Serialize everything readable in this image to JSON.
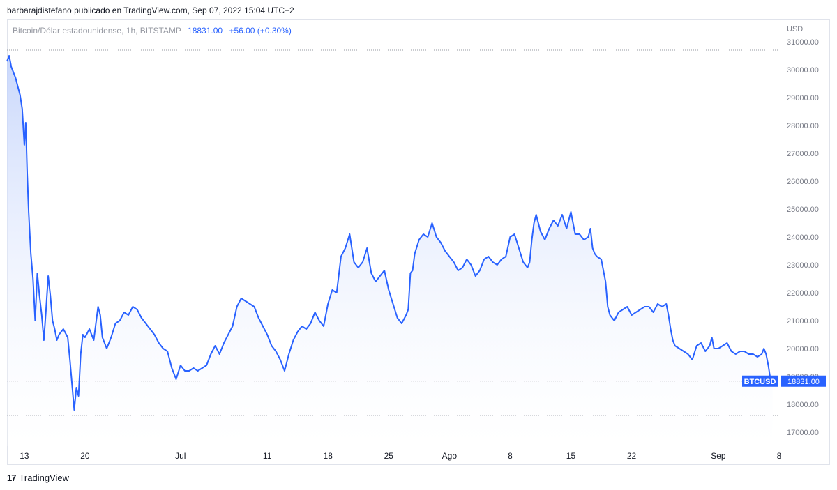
{
  "header": {
    "caption": "barbarajdistefano publicado en TradingView.com, Sep 07, 2022 15:04 UTC+2"
  },
  "legend": {
    "symbol": "Bitcoin/Dólar estadounidense, 1h, BITSTAMP",
    "price": "18831.00",
    "change": "+56.00 (+0.30%)"
  },
  "footer": {
    "brand": "TradingView",
    "logo_icon": "tradingview-logo-icon"
  },
  "colors": {
    "line": "#2962ff",
    "fill_top": "#bfd0fb",
    "fill_bottom": "#ffffff",
    "badge": "#2962ff",
    "axis_text": "#787b86"
  },
  "chart_data": {
    "type": "area",
    "currency_label": "USD",
    "y_ticks": [
      17000,
      18000,
      19000,
      20000,
      21000,
      22000,
      23000,
      24000,
      25000,
      26000,
      27000,
      28000,
      29000,
      30000,
      31000
    ],
    "y_tick_labels": [
      "17000.00",
      "18000.00",
      "19000.00",
      "20000.00",
      "21000.00",
      "22000.00",
      "23000.00",
      "24000.00",
      "25000.00",
      "26000.00",
      "27000.00",
      "28000.00",
      "29000.00",
      "30000.00",
      "31000.00"
    ],
    "ylim": [
      16500,
      31800
    ],
    "x_range": [
      "2022-06-11",
      "2022-09-08"
    ],
    "x_ticks": [
      {
        "date": "2022-06-13",
        "label": "13"
      },
      {
        "date": "2022-06-20",
        "label": "20"
      },
      {
        "date": "2022-07-01",
        "label": "Jul"
      },
      {
        "date": "2022-07-11",
        "label": "11"
      },
      {
        "date": "2022-07-18",
        "label": "18"
      },
      {
        "date": "2022-07-25",
        "label": "25"
      },
      {
        "date": "2022-08-01",
        "label": "Ago"
      },
      {
        "date": "2022-08-08",
        "label": "8"
      },
      {
        "date": "2022-08-15",
        "label": "15"
      },
      {
        "date": "2022-08-22",
        "label": "22"
      },
      {
        "date": "2022-09-01",
        "label": "Sep"
      },
      {
        "date": "2022-09-08",
        "label": "8"
      }
    ],
    "reference_lines": [
      30700,
      18831,
      17600
    ],
    "last_price": 18831,
    "last_price_label": "18831.00",
    "symbol_badge": "BTCUSD",
    "series": [
      {
        "points": [
          [
            "2022-06-11T00:00",
            30300
          ],
          [
            "2022-06-11T06:00",
            30500
          ],
          [
            "2022-06-11T12:00",
            30100
          ],
          [
            "2022-06-11T18:00",
            29900
          ],
          [
            "2022-06-12T00:00",
            29700
          ],
          [
            "2022-06-12T06:00",
            29400
          ],
          [
            "2022-06-12T12:00",
            29100
          ],
          [
            "2022-06-12T18:00",
            28600
          ],
          [
            "2022-06-13T00:00",
            27300
          ],
          [
            "2022-06-13T04:00",
            28100
          ],
          [
            "2022-06-13T08:00",
            26300
          ],
          [
            "2022-06-13T12:00",
            24900
          ],
          [
            "2022-06-13T18:00",
            23400
          ],
          [
            "2022-06-14T00:00",
            22500
          ],
          [
            "2022-06-14T06:00",
            21000
          ],
          [
            "2022-06-14T12:00",
            22700
          ],
          [
            "2022-06-14T18:00",
            21900
          ],
          [
            "2022-06-15T00:00",
            21200
          ],
          [
            "2022-06-15T06:00",
            20300
          ],
          [
            "2022-06-15T12:00",
            21400
          ],
          [
            "2022-06-15T18:00",
            22600
          ],
          [
            "2022-06-16T00:00",
            21900
          ],
          [
            "2022-06-16T06:00",
            21000
          ],
          [
            "2022-06-16T12:00",
            20700
          ],
          [
            "2022-06-16T18:00",
            20300
          ],
          [
            "2022-06-17T00:00",
            20500
          ],
          [
            "2022-06-17T12:00",
            20700
          ],
          [
            "2022-06-18T00:00",
            20400
          ],
          [
            "2022-06-18T06:00",
            19600
          ],
          [
            "2022-06-18T12:00",
            18700
          ],
          [
            "2022-06-18T18:00",
            17800
          ],
          [
            "2022-06-19T00:00",
            18600
          ],
          [
            "2022-06-19T06:00",
            18300
          ],
          [
            "2022-06-19T12:00",
            19800
          ],
          [
            "2022-06-19T18:00",
            20500
          ],
          [
            "2022-06-20T00:00",
            20400
          ],
          [
            "2022-06-20T12:00",
            20700
          ],
          [
            "2022-06-21T00:00",
            20300
          ],
          [
            "2022-06-21T12:00",
            21500
          ],
          [
            "2022-06-21T18:00",
            21200
          ],
          [
            "2022-06-22T00:00",
            20400
          ],
          [
            "2022-06-22T12:00",
            20000
          ],
          [
            "2022-06-23T00:00",
            20400
          ],
          [
            "2022-06-23T12:00",
            20900
          ],
          [
            "2022-06-24T00:00",
            21000
          ],
          [
            "2022-06-24T12:00",
            21300
          ],
          [
            "2022-06-25T00:00",
            21200
          ],
          [
            "2022-06-25T12:00",
            21500
          ],
          [
            "2022-06-26T00:00",
            21400
          ],
          [
            "2022-06-26T12:00",
            21100
          ],
          [
            "2022-06-27T00:00",
            20900
          ],
          [
            "2022-06-27T12:00",
            20700
          ],
          [
            "2022-06-28T00:00",
            20500
          ],
          [
            "2022-06-28T12:00",
            20200
          ],
          [
            "2022-06-29T00:00",
            20000
          ],
          [
            "2022-06-29T12:00",
            19900
          ],
          [
            "2022-06-30T00:00",
            19300
          ],
          [
            "2022-06-30T12:00",
            18900
          ],
          [
            "2022-07-01T00:00",
            19400
          ],
          [
            "2022-07-01T12:00",
            19200
          ],
          [
            "2022-07-02T00:00",
            19200
          ],
          [
            "2022-07-02T12:00",
            19300
          ],
          [
            "2022-07-03T00:00",
            19200
          ],
          [
            "2022-07-03T12:00",
            19300
          ],
          [
            "2022-07-04T00:00",
            19400
          ],
          [
            "2022-07-04T12:00",
            19800
          ],
          [
            "2022-07-05T00:00",
            20100
          ],
          [
            "2022-07-05T12:00",
            19800
          ],
          [
            "2022-07-06T00:00",
            20200
          ],
          [
            "2022-07-06T12:00",
            20500
          ],
          [
            "2022-07-07T00:00",
            20800
          ],
          [
            "2022-07-07T12:00",
            21500
          ],
          [
            "2022-07-08T00:00",
            21800
          ],
          [
            "2022-07-08T12:00",
            21700
          ],
          [
            "2022-07-09T00:00",
            21600
          ],
          [
            "2022-07-09T12:00",
            21500
          ],
          [
            "2022-07-10T00:00",
            21100
          ],
          [
            "2022-07-10T12:00",
            20800
          ],
          [
            "2022-07-11T00:00",
            20500
          ],
          [
            "2022-07-11T12:00",
            20100
          ],
          [
            "2022-07-12T00:00",
            19900
          ],
          [
            "2022-07-12T12:00",
            19600
          ],
          [
            "2022-07-13T00:00",
            19200
          ],
          [
            "2022-07-13T12:00",
            19800
          ],
          [
            "2022-07-14T00:00",
            20300
          ],
          [
            "2022-07-14T12:00",
            20600
          ],
          [
            "2022-07-15T00:00",
            20800
          ],
          [
            "2022-07-15T12:00",
            20700
          ],
          [
            "2022-07-16T00:00",
            20900
          ],
          [
            "2022-07-16T12:00",
            21300
          ],
          [
            "2022-07-17T00:00",
            21000
          ],
          [
            "2022-07-17T12:00",
            20800
          ],
          [
            "2022-07-18T00:00",
            21600
          ],
          [
            "2022-07-18T12:00",
            22100
          ],
          [
            "2022-07-19T00:00",
            22000
          ],
          [
            "2022-07-19T12:00",
            23300
          ],
          [
            "2022-07-20T00:00",
            23600
          ],
          [
            "2022-07-20T12:00",
            24100
          ],
          [
            "2022-07-21T00:00",
            23100
          ],
          [
            "2022-07-21T12:00",
            22900
          ],
          [
            "2022-07-22T00:00",
            23100
          ],
          [
            "2022-07-22T12:00",
            23600
          ],
          [
            "2022-07-23T00:00",
            22700
          ],
          [
            "2022-07-23T12:00",
            22400
          ],
          [
            "2022-07-24T00:00",
            22600
          ],
          [
            "2022-07-24T12:00",
            22800
          ],
          [
            "2022-07-25T00:00",
            22100
          ],
          [
            "2022-07-25T12:00",
            21600
          ],
          [
            "2022-07-26T00:00",
            21100
          ],
          [
            "2022-07-26T12:00",
            20900
          ],
          [
            "2022-07-27T00:00",
            21200
          ],
          [
            "2022-07-27T06:00",
            21400
          ],
          [
            "2022-07-27T12:00",
            22700
          ],
          [
            "2022-07-27T18:00",
            22800
          ],
          [
            "2022-07-28T00:00",
            23400
          ],
          [
            "2022-07-28T12:00",
            23900
          ],
          [
            "2022-07-29T00:00",
            24100
          ],
          [
            "2022-07-29T12:00",
            24000
          ],
          [
            "2022-07-30T00:00",
            24500
          ],
          [
            "2022-07-30T12:00",
            24000
          ],
          [
            "2022-07-31T00:00",
            23800
          ],
          [
            "2022-07-31T12:00",
            23500
          ],
          [
            "2022-08-01T00:00",
            23300
          ],
          [
            "2022-08-01T12:00",
            23100
          ],
          [
            "2022-08-02T00:00",
            22800
          ],
          [
            "2022-08-02T12:00",
            22900
          ],
          [
            "2022-08-03T00:00",
            23200
          ],
          [
            "2022-08-03T12:00",
            23000
          ],
          [
            "2022-08-04T00:00",
            22600
          ],
          [
            "2022-08-04T12:00",
            22800
          ],
          [
            "2022-08-05T00:00",
            23200
          ],
          [
            "2022-08-05T12:00",
            23300
          ],
          [
            "2022-08-06T00:00",
            23100
          ],
          [
            "2022-08-06T12:00",
            23000
          ],
          [
            "2022-08-07T00:00",
            23200
          ],
          [
            "2022-08-07T12:00",
            23300
          ],
          [
            "2022-08-08T00:00",
            24000
          ],
          [
            "2022-08-08T12:00",
            24100
          ],
          [
            "2022-08-09T00:00",
            23600
          ],
          [
            "2022-08-09T12:00",
            23100
          ],
          [
            "2022-08-10T00:00",
            22900
          ],
          [
            "2022-08-10T06:00",
            23100
          ],
          [
            "2022-08-10T12:00",
            23900
          ],
          [
            "2022-08-10T18:00",
            24500
          ],
          [
            "2022-08-11T00:00",
            24800
          ],
          [
            "2022-08-11T12:00",
            24200
          ],
          [
            "2022-08-12T00:00",
            23900
          ],
          [
            "2022-08-12T12:00",
            24300
          ],
          [
            "2022-08-13T00:00",
            24600
          ],
          [
            "2022-08-13T12:00",
            24400
          ],
          [
            "2022-08-14T00:00",
            24800
          ],
          [
            "2022-08-14T12:00",
            24300
          ],
          [
            "2022-08-15T00:00",
            24900
          ],
          [
            "2022-08-15T06:00",
            24500
          ],
          [
            "2022-08-15T12:00",
            24100
          ],
          [
            "2022-08-16T00:00",
            24100
          ],
          [
            "2022-08-16T12:00",
            23900
          ],
          [
            "2022-08-17T00:00",
            24000
          ],
          [
            "2022-08-17T06:00",
            24300
          ],
          [
            "2022-08-17T12:00",
            23600
          ],
          [
            "2022-08-17T18:00",
            23400
          ],
          [
            "2022-08-18T00:00",
            23300
          ],
          [
            "2022-08-18T12:00",
            23200
          ],
          [
            "2022-08-19T00:00",
            22400
          ],
          [
            "2022-08-19T06:00",
            21500
          ],
          [
            "2022-08-19T12:00",
            21200
          ],
          [
            "2022-08-20T00:00",
            21000
          ],
          [
            "2022-08-20T12:00",
            21300
          ],
          [
            "2022-08-21T00:00",
            21400
          ],
          [
            "2022-08-21T12:00",
            21500
          ],
          [
            "2022-08-22T00:00",
            21200
          ],
          [
            "2022-08-22T12:00",
            21300
          ],
          [
            "2022-08-23T00:00",
            21400
          ],
          [
            "2022-08-23T12:00",
            21500
          ],
          [
            "2022-08-24T00:00",
            21500
          ],
          [
            "2022-08-24T12:00",
            21300
          ],
          [
            "2022-08-25T00:00",
            21600
          ],
          [
            "2022-08-25T12:00",
            21500
          ],
          [
            "2022-08-26T00:00",
            21600
          ],
          [
            "2022-08-26T06:00",
            21200
          ],
          [
            "2022-08-26T12:00",
            20700
          ],
          [
            "2022-08-26T18:00",
            20300
          ],
          [
            "2022-08-27T00:00",
            20100
          ],
          [
            "2022-08-27T12:00",
            20000
          ],
          [
            "2022-08-28T00:00",
            19900
          ],
          [
            "2022-08-28T12:00",
            19800
          ],
          [
            "2022-08-29T00:00",
            19600
          ],
          [
            "2022-08-29T12:00",
            20100
          ],
          [
            "2022-08-30T00:00",
            20200
          ],
          [
            "2022-08-30T12:00",
            19900
          ],
          [
            "2022-08-31T00:00",
            20100
          ],
          [
            "2022-08-31T06:00",
            20400
          ],
          [
            "2022-08-31T12:00",
            20000
          ],
          [
            "2022-09-01T00:00",
            20000
          ],
          [
            "2022-09-01T12:00",
            20100
          ],
          [
            "2022-09-02T00:00",
            20200
          ],
          [
            "2022-09-02T12:00",
            19900
          ],
          [
            "2022-09-03T00:00",
            19800
          ],
          [
            "2022-09-03T12:00",
            19900
          ],
          [
            "2022-09-04T00:00",
            19900
          ],
          [
            "2022-09-04T12:00",
            19800
          ],
          [
            "2022-09-05T00:00",
            19800
          ],
          [
            "2022-09-05T12:00",
            19700
          ],
          [
            "2022-09-06T00:00",
            19800
          ],
          [
            "2022-09-06T06:00",
            20000
          ],
          [
            "2022-09-06T12:00",
            19800
          ],
          [
            "2022-09-06T18:00",
            19400
          ],
          [
            "2022-09-07T00:00",
            18900
          ],
          [
            "2022-09-07T06:00",
            18831
          ]
        ]
      }
    ]
  }
}
